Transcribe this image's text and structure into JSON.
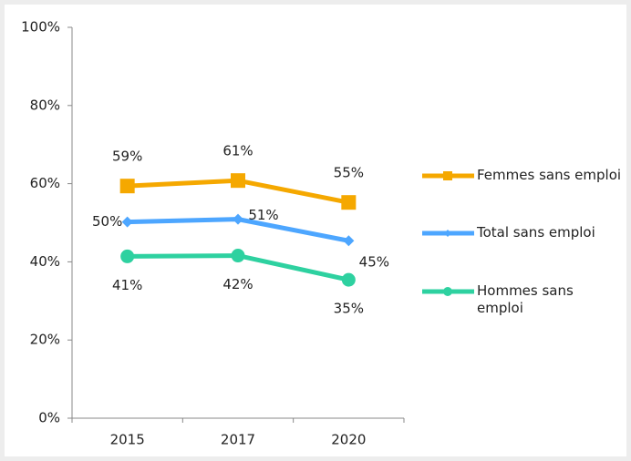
{
  "chart_data": {
    "type": "line",
    "categories": [
      "2015",
      "2017",
      "2020"
    ],
    "series": [
      {
        "name": "Femmes sans emploi",
        "color": "#f5a800",
        "marker": "square",
        "values": [
          59.4,
          60.8,
          55.2
        ],
        "value_labels": [
          "59%",
          "61%",
          "55%"
        ]
      },
      {
        "name": "Total sans emploi",
        "color": "#4da6ff",
        "marker": "diamond",
        "values": [
          50.2,
          50.9,
          45.4
        ],
        "value_labels": [
          "50%",
          "51%",
          "45%"
        ]
      },
      {
        "name": "Hommes sans emploi",
        "color": "#2ed1a0",
        "marker": "circle",
        "values": [
          41.4,
          41.6,
          35.4
        ],
        "value_labels": [
          "41%",
          "42%",
          "35%"
        ]
      }
    ],
    "ylim": [
      0,
      100
    ],
    "yticks": [
      {
        "value": 0,
        "label": "0%"
      },
      {
        "value": 20,
        "label": "20%"
      },
      {
        "value": 40,
        "label": "40%"
      },
      {
        "value": 60,
        "label": "60%"
      },
      {
        "value": 80,
        "label": "80%"
      },
      {
        "value": 100,
        "label": "100%"
      }
    ],
    "legend": "right"
  }
}
